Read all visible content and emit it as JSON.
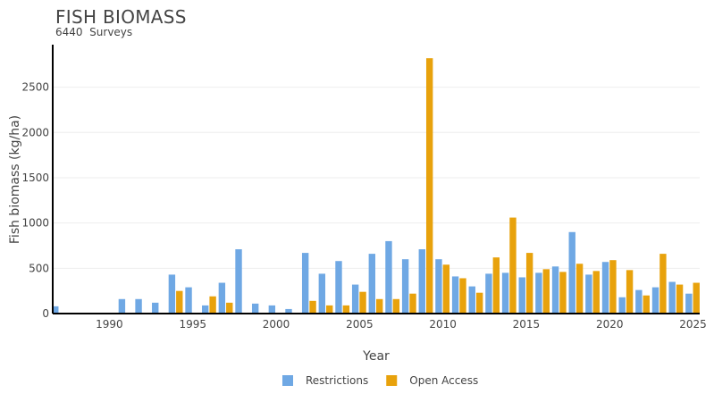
{
  "chart_data": {
    "type": "bar",
    "title": "FISH BIOMASS",
    "subtitle": "6440  Surveys",
    "xlabel": "Year",
    "ylabel": "Fish biomass (kg/ha)",
    "xlim": [
      1986.6,
      2025.4
    ],
    "ylim": [
      0,
      2950
    ],
    "xticks": [
      1990,
      1995,
      2000,
      2005,
      2010,
      2015,
      2020,
      2025
    ],
    "yticks": [
      0,
      500,
      1000,
      1500,
      2000,
      2500
    ],
    "grid": true,
    "legend": "bottom-center",
    "x": [
      1987,
      1988,
      1989,
      1990,
      1991,
      1992,
      1993,
      1994,
      1995,
      1996,
      1997,
      1998,
      1999,
      2000,
      2001,
      2002,
      2003,
      2004,
      2005,
      2006,
      2007,
      2008,
      2009,
      2010,
      2011,
      2012,
      2013,
      2014,
      2015,
      2016,
      2017,
      2018,
      2019,
      2020,
      2021,
      2022,
      2023,
      2024,
      2025
    ],
    "series": [
      {
        "name": "Restrictions",
        "color": "#6fa8e4",
        "values": [
          80,
          0,
          0,
          0,
          160,
          160,
          120,
          430,
          290,
          90,
          340,
          710,
          110,
          90,
          50,
          670,
          440,
          580,
          320,
          660,
          800,
          600,
          710,
          600,
          410,
          300,
          440,
          450,
          400,
          450,
          520,
          900,
          430,
          570,
          180,
          260,
          290,
          350,
          220
        ]
      },
      {
        "name": "Open Access",
        "color": "#e8a20c",
        "values": [
          0,
          0,
          0,
          0,
          0,
          0,
          0,
          250,
          0,
          190,
          120,
          0,
          0,
          0,
          0,
          140,
          90,
          90,
          240,
          160,
          160,
          220,
          2820,
          540,
          390,
          230,
          620,
          1060,
          670,
          490,
          460,
          550,
          470,
          590,
          480,
          200,
          660,
          320,
          340
        ]
      }
    ]
  }
}
